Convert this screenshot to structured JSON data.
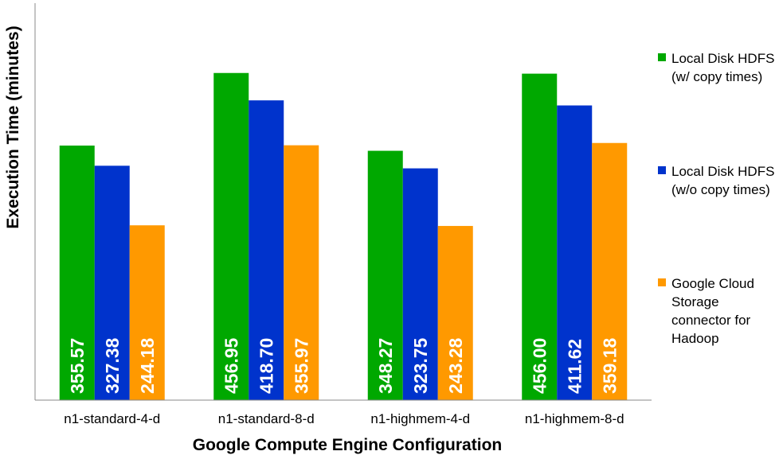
{
  "chart_data": {
    "type": "bar",
    "title": "",
    "xlabel": "Google Compute Engine Configuration",
    "ylabel": "Execution Time (minutes)",
    "categories": [
      "n1-standard-4-d",
      "n1-standard-8-d",
      "n1-highmem-4-d",
      "n1-highmem-8-d"
    ],
    "series": [
      {
        "name": "Local Disk HDFS (w/ copy times)",
        "color": "#00a800",
        "values": [
          355.57,
          456.95,
          348.27,
          456.0
        ],
        "labels": [
          "355.57",
          "456.95",
          "348.27",
          "456.00"
        ]
      },
      {
        "name": "Local Disk HDFS (w/o copy times)",
        "color": "#0033cc",
        "values": [
          327.38,
          418.7,
          323.75,
          411.62
        ],
        "labels": [
          "327.38",
          "418.70",
          "323.75",
          "411.62"
        ]
      },
      {
        "name": "Google Cloud Storage connector for Hadoop",
        "color": "#ff9900",
        "values": [
          244.18,
          355.97,
          243.28,
          359.18
        ],
        "labels": [
          "244.18",
          "355.97",
          "243.28",
          "359.18"
        ]
      }
    ],
    "ylim": [
      0,
      500
    ],
    "grid": false,
    "y_ticks_shown": false,
    "legend_position": "right",
    "data_label_color": "#ffffff"
  }
}
